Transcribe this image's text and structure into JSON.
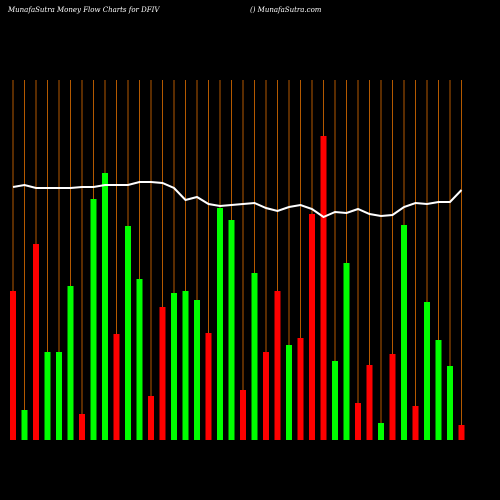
{
  "chart_data": {
    "type": "bar-line",
    "title": "MunafaSutra  Money Flow  Charts for DFIV",
    "source": "() MunafaSutra.com",
    "categories": [
      null,
      null,
      null,
      null,
      null,
      null,
      null,
      null,
      null,
      null,
      null,
      null,
      null,
      null,
      null,
      null,
      null,
      null,
      null,
      null,
      null,
      null,
      null,
      null,
      null,
      null,
      null,
      null,
      null,
      null,
      null,
      null,
      null,
      null,
      null,
      null,
      null,
      null,
      null,
      null
    ],
    "ylim": [
      0,
      360
    ],
    "grid": true,
    "grid_color": "#b35900",
    "bars": {
      "values": [
        149,
        30,
        196,
        88,
        88,
        154,
        26,
        241,
        267,
        106,
        214,
        161,
        44,
        133,
        147,
        149,
        140,
        107,
        232,
        220,
        50,
        167,
        88,
        149,
        95,
        102,
        226,
        304,
        79,
        177,
        37,
        75,
        17,
        86,
        215,
        34,
        138,
        100,
        74,
        15
      ],
      "colors": [
        "#ff0000",
        "#00ff00",
        "#ff0000",
        "#00ff00",
        "#00ff00",
        "#00ff00",
        "#ff0000",
        "#00ff00",
        "#00ff00",
        "#ff0000",
        "#00ff00",
        "#00ff00",
        "#ff0000",
        "#ff0000",
        "#00ff00",
        "#00ff00",
        "#00ff00",
        "#ff0000",
        "#00ff00",
        "#00ff00",
        "#ff0000",
        "#00ff00",
        "#ff0000",
        "#ff0000",
        "#00ff00",
        "#ff0000",
        "#ff0000",
        "#ff0000",
        "#00ff00",
        "#00ff00",
        "#ff0000",
        "#ff0000",
        "#00ff00",
        "#ff0000",
        "#00ff00",
        "#ff0000",
        "#00ff00",
        "#00ff00",
        "#00ff00",
        "#ff0000"
      ]
    },
    "line": {
      "color": "#ffffff",
      "values": [
        253,
        255,
        252,
        252,
        252,
        252,
        253,
        253,
        255,
        255,
        255,
        258,
        258,
        257,
        252,
        240,
        243,
        236,
        234,
        235,
        236,
        237,
        232,
        229,
        233,
        235,
        231,
        223,
        228,
        227,
        231,
        226,
        224,
        225,
        233,
        237,
        236,
        238,
        238,
        250
      ]
    }
  }
}
